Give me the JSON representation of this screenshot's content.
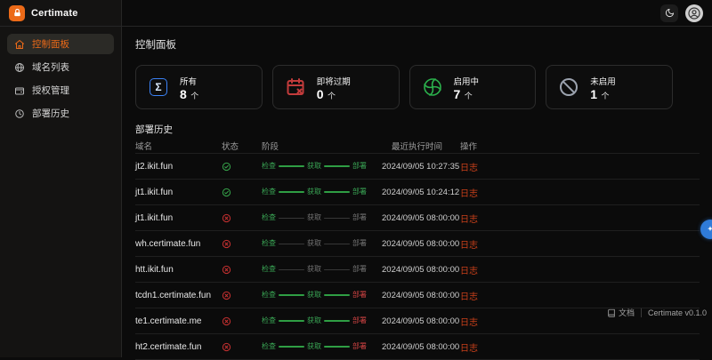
{
  "app": {
    "title": "Certimate"
  },
  "topbar": {
    "theme_icon": "moon-icon",
    "user_icon": "user-circle-icon"
  },
  "sidebar": {
    "items": [
      {
        "label": "控制面板",
        "icon": "home-icon",
        "active": true
      },
      {
        "label": "域名列表",
        "icon": "globe-icon",
        "active": false
      },
      {
        "label": "授权管理",
        "icon": "wallet-icon",
        "active": false
      },
      {
        "label": "部署历史",
        "icon": "history-icon",
        "active": false
      }
    ]
  },
  "page": {
    "title": "控制面板"
  },
  "stats": [
    {
      "label": "所有",
      "value": "8",
      "unit": "个",
      "icon": "sigma-icon",
      "color": "#3b82f6"
    },
    {
      "label": "即将过期",
      "value": "0",
      "unit": "个",
      "icon": "calendar-expire-icon",
      "color": "#c23b3b"
    },
    {
      "label": "启用中",
      "value": "7",
      "unit": "个",
      "icon": "fan-icon",
      "color": "#2bb14c"
    },
    {
      "label": "未启用",
      "value": "1",
      "unit": "个",
      "icon": "ban-icon",
      "color": "#9ca3af"
    }
  ],
  "history": {
    "title": "部署历史",
    "columns": [
      "域名",
      "状态",
      "阶段",
      "最近执行时间",
      "操作"
    ],
    "stage_labels": [
      "检查",
      "获取",
      "部署"
    ],
    "action_label": "日志",
    "rows": [
      {
        "domain": "jt2.ikit.fun",
        "status": "success",
        "stage_state": "all-green",
        "time": "2024/09/05 10:27:35"
      },
      {
        "domain": "jt1.ikit.fun",
        "status": "success",
        "stage_state": "all-green",
        "time": "2024/09/05 10:24:12"
      },
      {
        "domain": "jt1.ikit.fun",
        "status": "failed",
        "stage_state": "check-only",
        "time": "2024/09/05 08:00:00"
      },
      {
        "domain": "wh.certimate.fun",
        "status": "failed",
        "stage_state": "check-only",
        "time": "2024/09/05 08:00:00"
      },
      {
        "domain": "htt.ikit.fun",
        "status": "failed",
        "stage_state": "check-only",
        "time": "2024/09/05 08:00:00"
      },
      {
        "domain": "tcdn1.certimate.fun",
        "status": "failed",
        "stage_state": "deploy-failed",
        "time": "2024/09/05 08:00:00"
      },
      {
        "domain": "te1.certimate.me",
        "status": "failed",
        "stage_state": "deploy-failed",
        "time": "2024/09/05 08:00:00"
      },
      {
        "domain": "ht2.certimate.fun",
        "status": "failed",
        "stage_state": "deploy-failed",
        "time": "2024/09/05 08:00:00"
      }
    ]
  },
  "footer": {
    "docs_label": "文档",
    "docs_icon": "book-icon",
    "version": "Certimate v0.1.0",
    "badge_icon": "floating-translate-badge"
  },
  "colors": {
    "accent_orange": "#ec6a18",
    "success_green": "#36a34a",
    "error_red": "#c53030",
    "log_link": "#c9401a",
    "stat_blue": "#3b82f6",
    "badge_blue": "#2f7bd9"
  }
}
